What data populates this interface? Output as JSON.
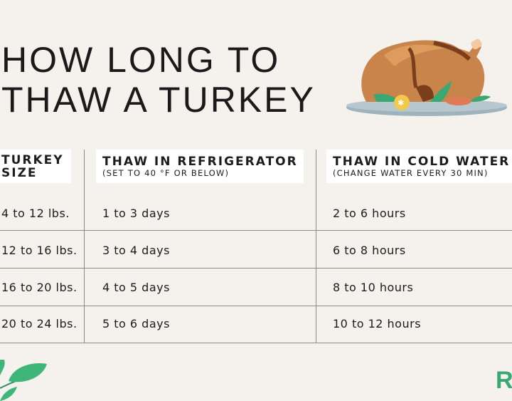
{
  "title": {
    "line1": "HOW LONG TO",
    "line2": "THAW A TURKEY"
  },
  "table": {
    "headers": [
      {
        "title_line1": "TURKEY",
        "title_line2": "SIZE",
        "subtitle": ""
      },
      {
        "title": "THAW IN REFRIGERATOR",
        "subtitle": "(SET TO 40 °F OR BELOW)"
      },
      {
        "title": "THAW IN COLD WATER",
        "subtitle": "(CHANGE WATER EVERY 30 MIN)"
      }
    ],
    "rows": [
      [
        "4 to 12 lbs.",
        "1 to 3 days",
        "2 to 6 hours"
      ],
      [
        "12 to 16 lbs.",
        "3 to 4 days",
        "6 to 8 hours"
      ],
      [
        "16 to 20 lbs.",
        "4 to 5 days",
        "8 to 10 hours"
      ],
      [
        "20 to 24 lbs.",
        "5 to 6 days",
        "10 to 12 hours"
      ]
    ]
  },
  "logo": {
    "text": "R"
  },
  "colors": {
    "background": "#f5f2ed",
    "accent_green": "#3aa873",
    "turkey_brown": "#c8844a"
  }
}
